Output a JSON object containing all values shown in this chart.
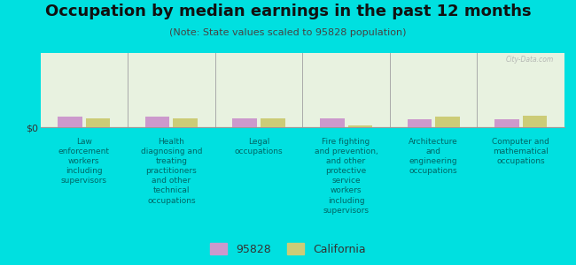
{
  "title": "Occupation by median earnings in the past 12 months",
  "subtitle": "(Note: State values scaled to 95828 population)",
  "background_color": "#00e0e0",
  "plot_bg_color": "#e8f2e0",
  "bar_color_95828": "#cc99cc",
  "bar_color_ca": "#cccc77",
  "ylabel": "$0",
  "categories": [
    "Law\nenforcement\nworkers\nincluding\nsupervisors",
    "Health\ndiagnosing and\ntreating\npractitioners\nand other\ntechnical\noccupations",
    "Legal\noccupations",
    "Fire fighting\nand prevention,\nand other\nprotective\nservice\nworkers\nincluding\nsupervisors",
    "Architecture\nand\nengineering\noccupations",
    "Computer and\nmathematical\noccupations"
  ],
  "values_95828": [
    55000,
    55000,
    48000,
    50000,
    42000,
    42000
  ],
  "values_ca": [
    50000,
    50000,
    46000,
    8000,
    55000,
    62000
  ],
  "ylim_max": 400000,
  "legend_labels": [
    "95828",
    "California"
  ],
  "watermark": "City-Data.com",
  "title_fontsize": 13,
  "subtitle_fontsize": 8,
  "xlabel_fontsize": 6.5,
  "legend_fontsize": 9
}
